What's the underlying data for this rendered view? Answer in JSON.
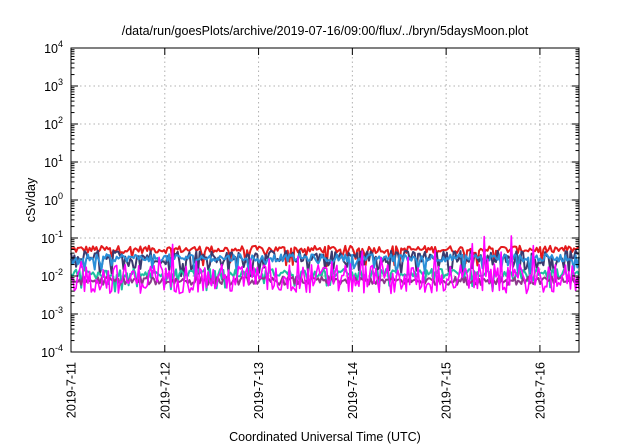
{
  "chart_data": {
    "type": "line",
    "title": "/data/run/goesPlots/archive/2019-07-16/09:00/flux/../bryn/5daysMoon.plot",
    "xlabel": "Coordinated Universal Time (UTC)",
    "ylabel": "cSv/day",
    "y_scale": "log",
    "ylim": [
      0.0001,
      10000
    ],
    "yticks": [
      {
        "base": "10",
        "exp": "-4"
      },
      {
        "base": "10",
        "exp": "-3"
      },
      {
        "base": "10",
        "exp": "-2"
      },
      {
        "base": "10",
        "exp": "-1"
      },
      {
        "base": "10",
        "exp": "0"
      },
      {
        "base": "10",
        "exp": "1"
      },
      {
        "base": "10",
        "exp": "2"
      },
      {
        "base": "10",
        "exp": "3"
      },
      {
        "base": "10",
        "exp": "4"
      }
    ],
    "x_start": "2019-07-11T00:00",
    "x_end": "2019-07-16T10:00",
    "xticks": [
      "2019-7-11",
      "2019-7-12",
      "2019-7-13",
      "2019-7-14",
      "2019-7-15",
      "2019-7-16"
    ],
    "grid": true,
    "legend": "none",
    "series": [
      {
        "color": "#e41a1c",
        "mean": 0.05,
        "spread": 0.22,
        "dips": 0.1
      },
      {
        "color": "#3a3a6e",
        "mean": 0.033,
        "spread": 0.35,
        "dips": 0.25
      },
      {
        "color": "#2a8fd8",
        "mean": 0.03,
        "spread": 0.22,
        "dips": 0.12
      },
      {
        "color": "#1fbfa0",
        "mean": 0.012,
        "spread": 0.25,
        "dips": 0.2
      },
      {
        "color": "#8b3a8b",
        "mean": 0.0075,
        "spread": 0.25,
        "dips": 0.0
      },
      {
        "color": "#ff00ff",
        "mean": 0.0085,
        "spread": 0.9,
        "dips": 0.0
      }
    ]
  }
}
